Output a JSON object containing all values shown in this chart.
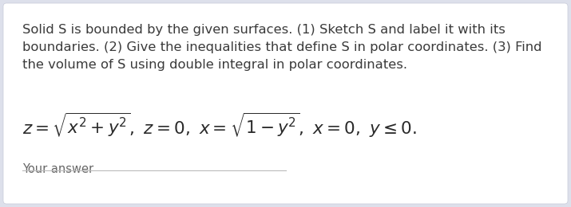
{
  "background_color": "#dde0eb",
  "card_color": "#ffffff",
  "body_text": "Solid S is bounded by the given surfaces. (1) Sketch S and label it with its\nboundaries. (2) Give the inequalities that define S in polar coordinates. (3) Find\nthe volume of S using double integral in polar coordinates.",
  "body_fontsize": 11.8,
  "body_color": "#3a3a3a",
  "formula_fontsize": 15.5,
  "formula_color": "#2a2a2a",
  "answer_label": "Your answer",
  "answer_fontsize": 10.5,
  "answer_color": "#666666",
  "formula": "$z = \\sqrt{x^2 + y^2},\\ z = 0,\\ x = \\sqrt{1 - y^2},\\ x = 0,\\ y \\leq 0.$"
}
